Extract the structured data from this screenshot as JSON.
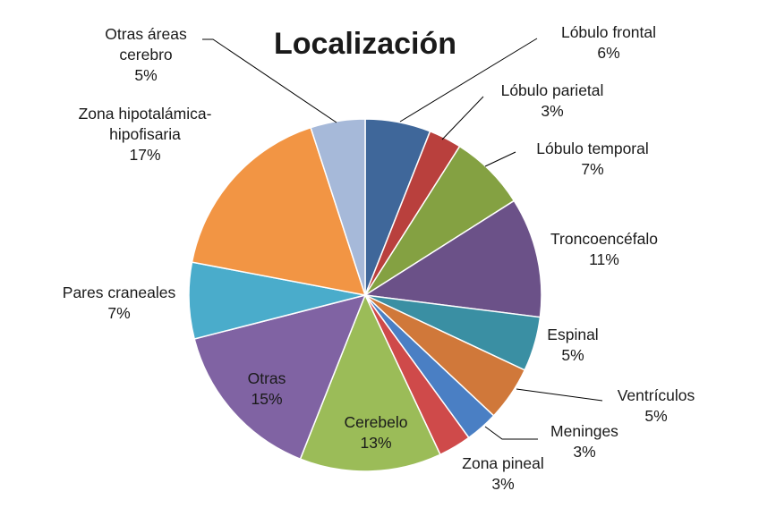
{
  "chart_data": {
    "type": "pie",
    "title": "Localización",
    "start_angle_deg": 0,
    "direction": "clockwise",
    "slices": [
      {
        "label": [
          "Lóbulo frontal"
        ],
        "value": 6,
        "value_label": "6%",
        "color": "#3f679a"
      },
      {
        "label": [
          "Lóbulo parietal"
        ],
        "value": 3,
        "value_label": "3%",
        "color": "#b9403d"
      },
      {
        "label": [
          "Lóbulo temporal"
        ],
        "value": 7,
        "value_label": "7%",
        "color": "#84a142"
      },
      {
        "label": [
          "Troncoencéfalo"
        ],
        "value": 11,
        "value_label": "11%",
        "color": "#6b5188"
      },
      {
        "label": [
          "Espinal"
        ],
        "value": 5,
        "value_label": "5%",
        "color": "#3a8fa3"
      },
      {
        "label": [
          "Ventrículos"
        ],
        "value": 5,
        "value_label": "5%",
        "color": "#d0783a"
      },
      {
        "label": [
          "Meninges"
        ],
        "value": 3,
        "value_label": "3%",
        "color": "#4a7fc4"
      },
      {
        "label": [
          "Zona pineal"
        ],
        "value": 3,
        "value_label": "3%",
        "color": "#cf4a4a"
      },
      {
        "label": [
          "Cerebelo"
        ],
        "value": 13,
        "value_label": "13%",
        "color": "#9bbc58"
      },
      {
        "label": [
          "Otras"
        ],
        "value": 15,
        "value_label": "15%",
        "color": "#8063a3"
      },
      {
        "label": [
          "Pares craneales"
        ],
        "value": 7,
        "value_label": "7%",
        "color": "#4aaccb"
      },
      {
        "label": [
          "Zona hipotalámica-",
          "hipofisaria"
        ],
        "value": 17,
        "value_label": "17%",
        "color": "#f29544"
      },
      {
        "label": [
          "Otras áreas",
          "cerebro"
        ],
        "value": 5,
        "value_label": "5%",
        "color": "#a6b9d9"
      }
    ]
  }
}
